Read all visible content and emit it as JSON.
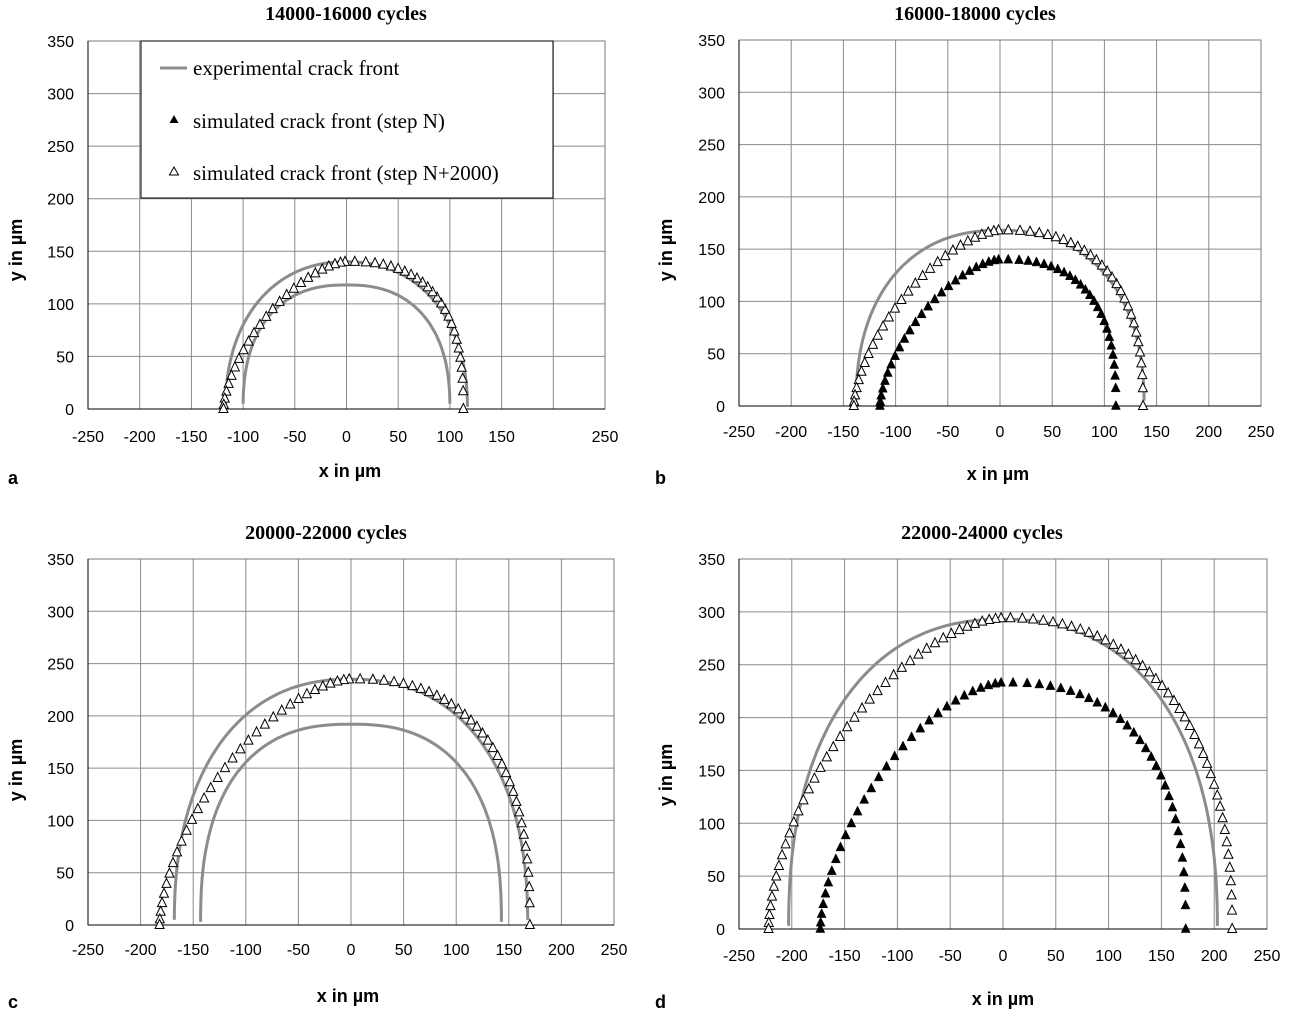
{
  "legend": {
    "entries": [
      {
        "label": "experimental crack front",
        "marker": "line",
        "color": "#8c8c8c"
      },
      {
        "label": "simulated crack front (step N)",
        "marker": "filled-triangle",
        "color": "#000000"
      },
      {
        "label": "simulated crack front (step N+2000)",
        "marker": "open-triangle",
        "color": "#000000"
      }
    ]
  },
  "chart_data": [
    {
      "type": "line",
      "panel": "a",
      "title": "14000-16000 cycles",
      "xlabel": "x in µm",
      "ylabel": "y in µm",
      "xlim": [
        -250,
        250
      ],
      "ylim": [
        0,
        350
      ],
      "xticks": [
        -250,
        -200,
        -150,
        -100,
        -50,
        0,
        50,
        100,
        150,
        250
      ],
      "xticks_full": [
        -250,
        -200,
        -150,
        -100,
        -50,
        0,
        50,
        100,
        150,
        200,
        250
      ],
      "yticks": [
        0,
        50,
        100,
        150,
        200,
        250,
        300,
        350
      ],
      "grid": true,
      "legend_position": "top-left",
      "curves": [
        {
          "a": 117,
          "b": 140,
          "p": 2.2,
          "ylow": 2
        },
        {
          "a": 100,
          "b": 118,
          "p": 2.4,
          "ylow": 5
        }
      ],
      "series": [
        {
          "name": "simulated crack front (step N+2000)",
          "marker": "open-triangle",
          "left": {
            "a": 119,
            "b": 140,
            "p": 1.55
          },
          "right": {
            "a": 113,
            "b": 140,
            "p": 2.6
          },
          "n": 50
        }
      ]
    },
    {
      "type": "line",
      "panel": "b",
      "title": "16000-18000 cycles",
      "xlabel": "x in µm",
      "ylabel": "y in µm",
      "xlim": [
        -250,
        250
      ],
      "ylim": [
        0,
        350
      ],
      "xticks": [
        -250,
        -200,
        -150,
        -100,
        -50,
        0,
        50,
        100,
        150,
        200,
        250
      ],
      "yticks": [
        0,
        50,
        100,
        150,
        200,
        250,
        300,
        350
      ],
      "grid": true,
      "legend_position": "none",
      "curves": [
        {
          "a": 138,
          "b": 168,
          "p": 2.3,
          "ylow": 5
        }
      ],
      "series": [
        {
          "name": "simulated crack front (step N+2000)",
          "marker": "open-triangle",
          "left": {
            "a": 140,
            "b": 168,
            "p": 1.55
          },
          "right": {
            "a": 137,
            "b": 168,
            "p": 2.5
          },
          "n": 56
        },
        {
          "name": "simulated crack front (step N)",
          "marker": "filled-triangle",
          "left": {
            "a": 115,
            "b": 140,
            "p": 1.55
          },
          "right": {
            "a": 111,
            "b": 140,
            "p": 2.6
          },
          "n": 50
        }
      ]
    },
    {
      "type": "line",
      "panel": "c",
      "title": "20000-22000 cycles",
      "xlabel": "x in µm",
      "ylabel": "y in µm",
      "xlim": [
        -250,
        250
      ],
      "ylim": [
        0,
        350
      ],
      "xticks": [
        -250,
        -200,
        -150,
        -100,
        -50,
        0,
        50,
        100,
        150,
        200,
        250
      ],
      "yticks": [
        0,
        50,
        100,
        150,
        200,
        250,
        300,
        350
      ],
      "grid": true,
      "legend_position": "none",
      "curves": [
        {
          "a": 168,
          "b": 235,
          "p": 2.3,
          "ylow": 5
        },
        {
          "a": 143,
          "b": 192,
          "p": 2.5,
          "ylow": 3
        }
      ],
      "series": [
        {
          "name": "simulated crack front (step N+2000)",
          "marker": "open-triangle",
          "left": {
            "a": 182,
            "b": 235,
            "p": 1.6
          },
          "right": {
            "a": 170,
            "b": 235,
            "p": 2.5
          },
          "n": 66
        }
      ]
    },
    {
      "type": "line",
      "panel": "d",
      "title": "22000-24000 cycles",
      "xlabel": "x in µm",
      "ylabel": "y in µm",
      "xlim": [
        -250,
        250
      ],
      "ylim": [
        0,
        350
      ],
      "xticks": [
        -250,
        -200,
        -150,
        -100,
        -50,
        0,
        50,
        100,
        150,
        200,
        250
      ],
      "yticks": [
        0,
        50,
        100,
        150,
        200,
        250,
        300,
        350
      ],
      "grid": true,
      "legend_position": "none",
      "curves": [
        {
          "a": 203,
          "b": 293,
          "p": 2.3,
          "ylow": 3
        }
      ],
      "series": [
        {
          "name": "simulated crack front (step N+2000)",
          "marker": "open-triangle",
          "left": {
            "a": 222,
            "b": 294,
            "p": 1.65
          },
          "right": {
            "a": 217,
            "b": 294,
            "p": 2.3
          },
          "n": 82
        },
        {
          "name": "simulated crack front (step N)",
          "marker": "filled-triangle",
          "left": {
            "a": 173,
            "b": 233,
            "p": 1.6
          },
          "right": {
            "a": 173,
            "b": 233,
            "p": 2.5
          },
          "n": 60
        }
      ]
    }
  ]
}
